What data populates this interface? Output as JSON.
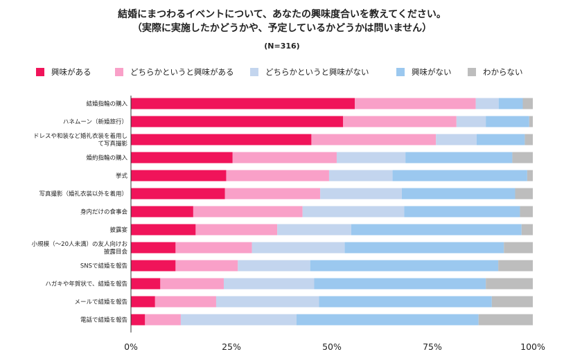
{
  "chart_data": {
    "type": "bar",
    "orientation": "horizontal",
    "stacked": true,
    "title_lines": [
      "結婚にまつわるイベントについて、あなたの興味度合いを教えてください。",
      "（実際に実施したかどうかや、予定しているかどうかは問いません）"
    ],
    "subtitle": "(N=316)",
    "categories": [
      [
        "結婚指輪の購入"
      ],
      [
        "ハネムーン（新婚旅行）"
      ],
      [
        "ドレスや和装など婚礼衣装を着用し",
        "て写真撮影"
      ],
      [
        "婚約指輪の購入"
      ],
      [
        "挙式"
      ],
      [
        "写真撮影（婚礼衣装以外を着用）"
      ],
      [
        "身内だけの食事会"
      ],
      [
        "披露宴"
      ],
      [
        "小規模（～20人未満）の友人向けお",
        "披露目会"
      ],
      [
        "SNSで結婚を報告"
      ],
      [
        "ハガキや年賀状で、結婚を報告"
      ],
      [
        "メールで結婚を報告"
      ],
      [
        "電話で結婚を報告"
      ]
    ],
    "series": [
      {
        "name": "興味がある",
        "color": "#f0145a",
        "values": [
          55.7,
          52.8,
          44.9,
          25.3,
          23.7,
          23.4,
          15.5,
          16.1,
          11.1,
          11.1,
          7.3,
          6.0,
          3.5
        ]
      },
      {
        "name": "どちらかというと興味がある",
        "color": "#f9a0c8",
        "values": [
          30.1,
          28.2,
          31.0,
          25.9,
          25.6,
          23.7,
          27.2,
          20.3,
          19.0,
          15.5,
          15.8,
          15.2,
          8.9
        ]
      },
      {
        "name": "どちらかというと興味がない",
        "color": "#c3d5ee",
        "values": [
          5.7,
          7.3,
          10.1,
          17.1,
          15.8,
          20.3,
          25.3,
          18.4,
          23.1,
          18.0,
          22.5,
          25.6,
          28.8
        ]
      },
      {
        "name": "興味がない",
        "color": "#9bc8ef",
        "values": [
          6.0,
          10.8,
          12.0,
          26.6,
          33.5,
          28.2,
          28.8,
          42.4,
          39.6,
          46.8,
          42.7,
          43.0,
          45.3
        ]
      },
      {
        "name": "わからない",
        "color": "#bdbdbd",
        "values": [
          2.5,
          0.9,
          2.0,
          5.1,
          1.4,
          4.4,
          3.2,
          2.8,
          7.2,
          8.6,
          11.7,
          10.2,
          13.5
        ]
      }
    ],
    "xlim": [
      0,
      100
    ],
    "xticks": [
      "0%",
      "25%",
      "50%",
      "75%",
      "100%"
    ],
    "xlabel": "",
    "ylabel": "",
    "legend_position": "top",
    "grid": false
  }
}
